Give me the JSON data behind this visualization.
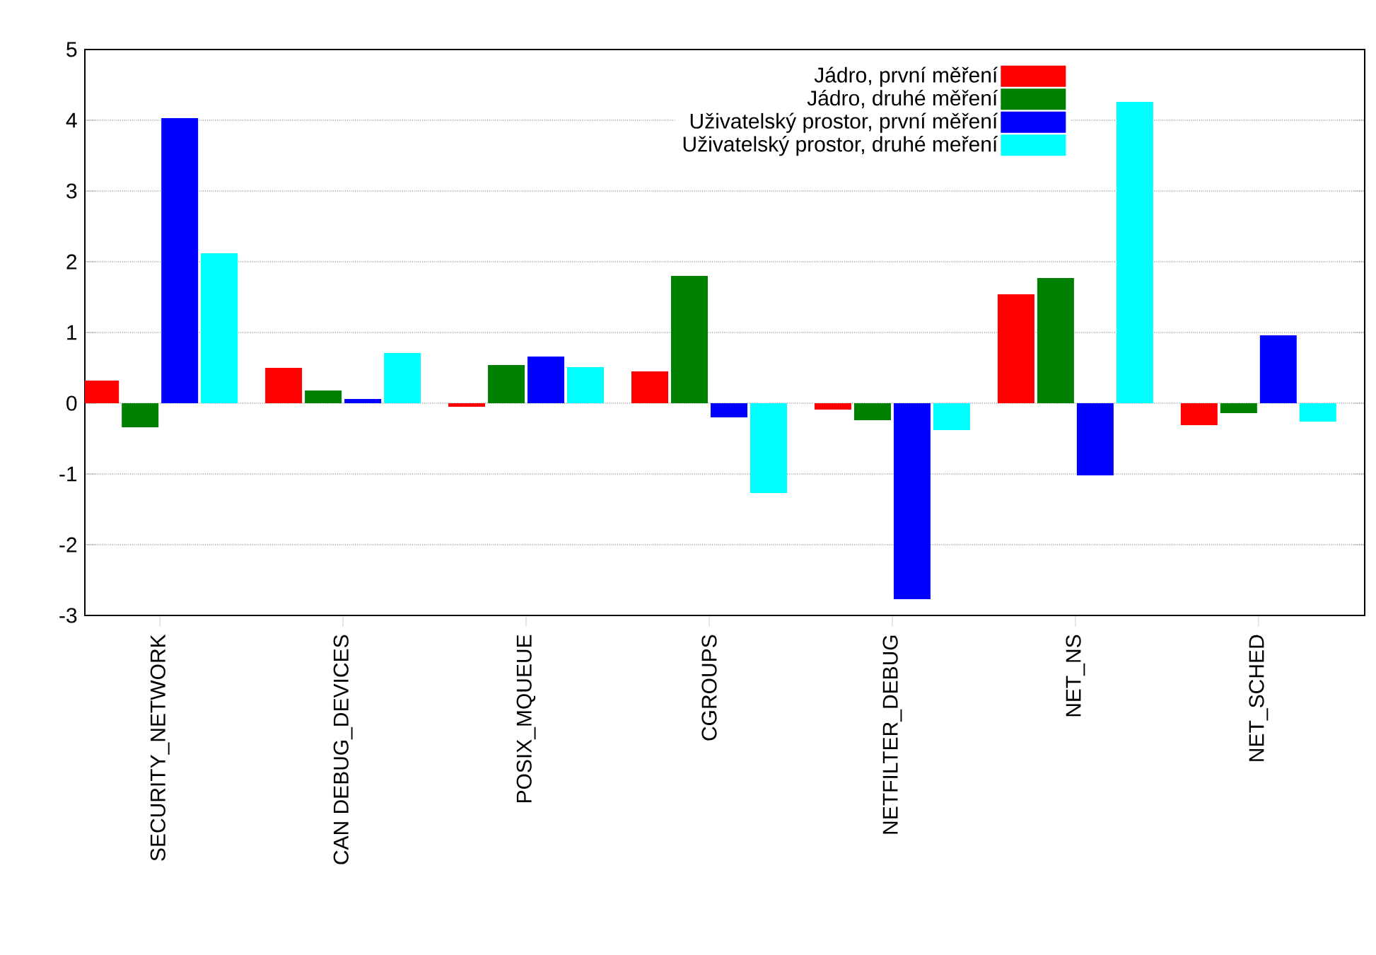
{
  "chart_data": {
    "type": "bar",
    "categories": [
      "SECURITY_NETWORK",
      "CAN DEBUG_DEVICES",
      "POSIX_MQUEUE",
      "CGROUPS",
      "NETFILTER_DEBUG",
      "NET_NS",
      "NET_SCHED"
    ],
    "series": [
      {
        "name": "Jádro, první měření",
        "color": "#ff0000",
        "values": [
          0.32,
          0.5,
          -0.05,
          0.45,
          -0.09,
          1.54,
          -0.31
        ]
      },
      {
        "name": "Jádro, druhé měření",
        "color": "#008000",
        "values": [
          -0.34,
          0.18,
          0.54,
          1.8,
          -0.24,
          1.77,
          -0.14
        ]
      },
      {
        "name": "Uživatelský prostor, první měření",
        "color": "#0000ff",
        "values": [
          4.03,
          0.06,
          0.66,
          -0.2,
          -2.77,
          -1.02,
          0.96
        ]
      },
      {
        "name": "Uživatelský prostor, druhé meření",
        "color": "#00ffff",
        "values": [
          2.12,
          0.71,
          0.51,
          -1.27,
          -0.38,
          4.26,
          -0.26
        ]
      }
    ],
    "ylim": [
      -3,
      5
    ],
    "yticks": [
      -3,
      -2,
      -1,
      0,
      1,
      2,
      3,
      4,
      5
    ],
    "grid": "y",
    "legend": "top right"
  }
}
